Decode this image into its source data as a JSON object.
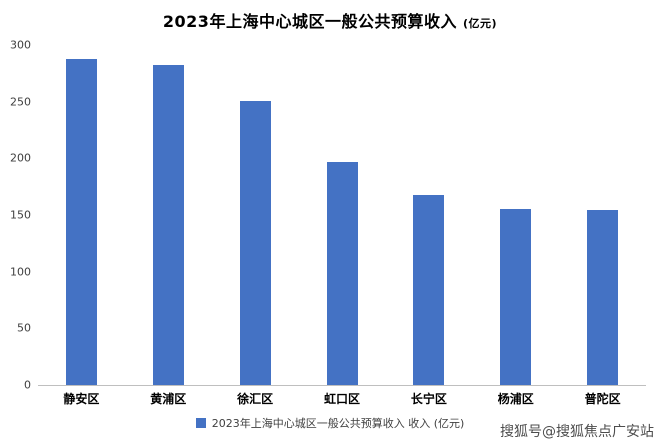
{
  "chart_data": {
    "type": "bar",
    "title": "2023年上海中心城区一般公共预算收入",
    "title_unit": "(亿元)",
    "categories": [
      "静安区",
      "黄浦区",
      "徐汇区",
      "虹口区",
      "长宁区",
      "杨浦区",
      "普陀区"
    ],
    "values": [
      288,
      282,
      251,
      197,
      168,
      155,
      154
    ],
    "ylim": [
      0,
      300
    ],
    "yticks": [
      0,
      50,
      100,
      150,
      200,
      250,
      300
    ],
    "grid": false,
    "bar_color": "#4472C4",
    "axis_line_color": "#bfbfbf",
    "legend": {
      "label": "2023年上海中心城区一般公共预算收入 收入 (亿元)",
      "position": "bottom"
    }
  },
  "watermark": "搜狐号@搜狐焦点广安站"
}
